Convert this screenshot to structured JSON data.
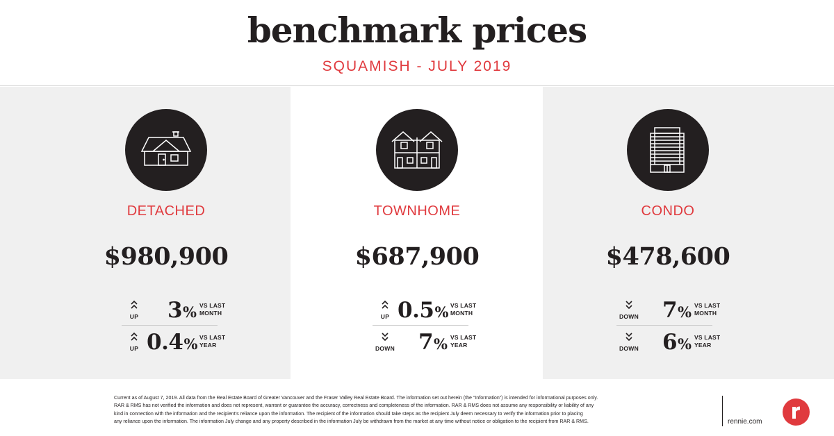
{
  "header": {
    "title": "benchmark prices",
    "subtitle": "SQUAMISH - JULY 2019"
  },
  "colors": {
    "accent": "#e03a3e",
    "dark": "#231f20",
    "panel_gray": "#f0f0f0"
  },
  "property_types": [
    {
      "icon": "detached-house-icon",
      "label": "DETACHED",
      "price": "$980,900",
      "stats": [
        {
          "direction": "UP",
          "value": "3",
          "unit": "%",
          "vs_line1": "VS LAST",
          "vs_line2": "MONTH"
        },
        {
          "direction": "UP",
          "value": "0.4",
          "unit": "%",
          "vs_line1": "VS LAST",
          "vs_line2": "YEAR"
        }
      ]
    },
    {
      "icon": "townhome-icon",
      "label": "TOWNHOME",
      "price": "$687,900",
      "stats": [
        {
          "direction": "UP",
          "value": "0.5",
          "unit": "%",
          "vs_line1": "VS LAST",
          "vs_line2": "MONTH"
        },
        {
          "direction": "DOWN",
          "value": "7",
          "unit": "%",
          "vs_line1": "VS LAST",
          "vs_line2": "YEAR"
        }
      ]
    },
    {
      "icon": "condo-building-icon",
      "label": "CONDO",
      "price": "$478,600",
      "stats": [
        {
          "direction": "DOWN",
          "value": "7",
          "unit": "%",
          "vs_line1": "VS LAST",
          "vs_line2": "MONTH"
        },
        {
          "direction": "DOWN",
          "value": "6",
          "unit": "%",
          "vs_line1": "VS LAST",
          "vs_line2": "YEAR"
        }
      ]
    }
  ],
  "footer": {
    "disclaimer_lines": [
      "Current as of August 7, 2019. All data from the Real Estate Board of Greater Vancouver and the Fraser Valley Real Estate Board. The information set out herein (the “Information”) is intended for informational purposes only.",
      "RAR & RMS has not verified the information and does not represent, warrant or guarantee the accuracy, correctness and completeness of the information. RAR & RMS does not assume any responsibility or liability of any",
      "kind in connection with the information and the recipient’s reliance upon the information. The recipient of the information should take steps as the recipient July deem necessary to verify the information prior to placing",
      "any reliance upon the information. The information July change and any property described in the information July be withdrawn from the market at any time without notice or obligation to the recipient from RAR & RMS."
    ],
    "site": "rennie.com",
    "logo": "rennie-logo-icon",
    "logo_letter": "r"
  }
}
